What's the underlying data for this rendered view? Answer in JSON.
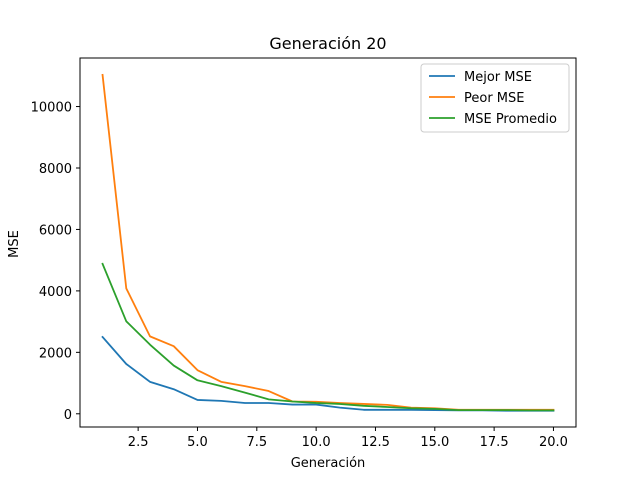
{
  "chart_data": {
    "type": "line",
    "title": "Generación 20",
    "xlabel": "Generación",
    "ylabel": "MSE",
    "xlim": [
      0.05,
      20.95
    ],
    "ylim": [
      -430,
      11580
    ],
    "x_ticks": [
      2.5,
      5.0,
      7.5,
      10.0,
      12.5,
      15.0,
      17.5,
      20.0
    ],
    "x_tick_labels": [
      "2.5",
      "5.0",
      "7.5",
      "10.0",
      "12.5",
      "15.0",
      "17.5",
      "20.0"
    ],
    "y_ticks": [
      0,
      2000,
      4000,
      6000,
      8000,
      10000
    ],
    "y_tick_labels": [
      "0",
      "2000",
      "4000",
      "6000",
      "8000",
      "10000"
    ],
    "grid": false,
    "legend_position": "top-right",
    "x": [
      1,
      2,
      3,
      4,
      5,
      6,
      7,
      8,
      9,
      10,
      11,
      12,
      13,
      14,
      15,
      16,
      17,
      18,
      19,
      20
    ],
    "series": [
      {
        "name": "Mejor MSE",
        "color": "#1f77b4",
        "values": [
          2500,
          1620,
          1040,
          800,
          450,
          420,
          350,
          350,
          300,
          300,
          200,
          130,
          130,
          130,
          120,
          110,
          110,
          100,
          100,
          100
        ]
      },
      {
        "name": "Peor MSE",
        "color": "#ff7f0e",
        "values": [
          11030,
          4080,
          2520,
          2200,
          1420,
          1040,
          900,
          740,
          400,
          390,
          350,
          320,
          290,
          200,
          180,
          130,
          130,
          130,
          130,
          130
        ]
      },
      {
        "name": "MSE Promedio",
        "color": "#2ca02c",
        "values": [
          4880,
          3010,
          2250,
          1570,
          1090,
          900,
          690,
          470,
          400,
          350,
          320,
          260,
          220,
          180,
          160,
          120,
          120,
          120,
          110,
          110
        ]
      }
    ]
  }
}
